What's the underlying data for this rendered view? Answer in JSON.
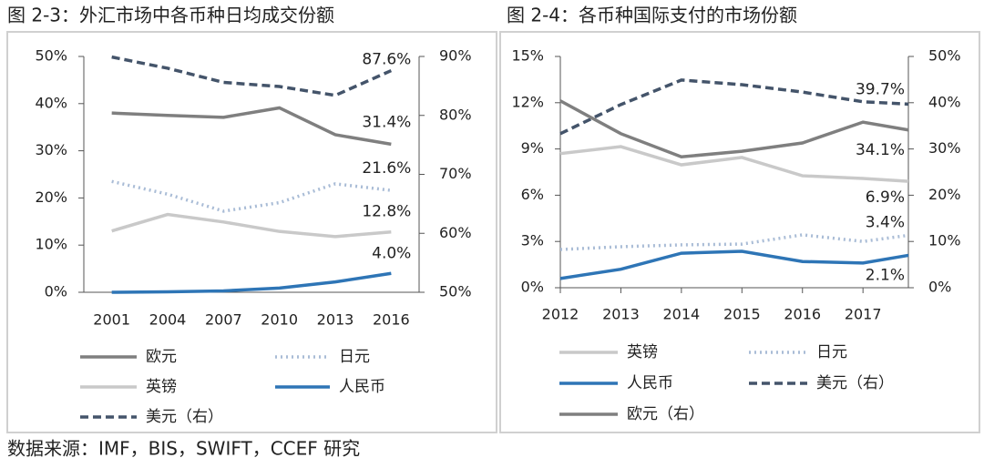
{
  "chart_data": [
    {
      "type": "line",
      "title": "图 2-3：外汇市场中各币种日均成交份额",
      "categories": [
        "2001",
        "2004",
        "2007",
        "2010",
        "2013",
        "2016"
      ],
      "ylim": [
        0,
        50
      ],
      "yticks": [
        {
          "value": 0,
          "label": "0%"
        },
        {
          "value": 10,
          "label": "10%"
        },
        {
          "value": 20,
          "label": "20%"
        },
        {
          "value": 30,
          "label": "30%"
        },
        {
          "value": 40,
          "label": "40%"
        },
        {
          "value": 50,
          "label": "50%"
        }
      ],
      "y2lim": [
        50,
        90
      ],
      "y2ticks": [
        {
          "value": 50,
          "label": "50%"
        },
        {
          "value": 60,
          "label": "60%"
        },
        {
          "value": 70,
          "label": "70%"
        },
        {
          "value": 80,
          "label": "80%"
        },
        {
          "value": 90,
          "label": "90%"
        }
      ],
      "series": [
        {
          "name": "欧元",
          "color": "#7f7f7f",
          "style": "solid",
          "values": [
            38.0,
            37.5,
            37.1,
            39.1,
            33.4,
            31.4
          ],
          "value_labels": [
            null,
            null,
            null,
            null,
            null,
            "31.4%"
          ]
        },
        {
          "name": "日元",
          "color": "#a9bcd6",
          "style": "dotted",
          "values": [
            23.5,
            20.8,
            17.2,
            19.0,
            23.0,
            21.6
          ],
          "value_labels": [
            null,
            null,
            null,
            null,
            null,
            "21.6%"
          ]
        },
        {
          "name": "英镑",
          "color": "#c9c9c9",
          "style": "solid",
          "values": [
            13.0,
            16.5,
            14.9,
            12.9,
            11.8,
            12.8
          ],
          "value_labels": [
            null,
            null,
            null,
            null,
            null,
            "12.8%"
          ]
        },
        {
          "name": "人民币",
          "color": "#2e75b6",
          "style": "solid",
          "values": [
            0.0,
            0.1,
            0.3,
            0.9,
            2.2,
            4.0
          ],
          "value_labels": [
            null,
            null,
            null,
            null,
            null,
            "4.0%"
          ]
        },
        {
          "name": "美元（右）",
          "color": "#44546a",
          "style": "dashed",
          "axis": "y2",
          "values": [
            89.9,
            88.0,
            85.6,
            84.9,
            83.4,
            87.6
          ],
          "value_labels": [
            null,
            null,
            null,
            null,
            null,
            "87.6%"
          ]
        }
      ]
    },
    {
      "type": "line",
      "title": "图 2-4：各币种国际支付的市场份额",
      "xlim": [
        2012,
        2017.75
      ],
      "xticks": [
        2012,
        2013,
        2014,
        2015,
        2016,
        2017
      ],
      "x": [
        2012,
        2013,
        2014,
        2015,
        2016,
        2017,
        2017.75
      ],
      "ylim": [
        0,
        15
      ],
      "yticks": [
        {
          "value": 0,
          "label": "0%"
        },
        {
          "value": 3,
          "label": "3%"
        },
        {
          "value": 6,
          "label": "6%"
        },
        {
          "value": 9,
          "label": "9%"
        },
        {
          "value": 12,
          "label": "12%"
        },
        {
          "value": 15,
          "label": "15%"
        }
      ],
      "y2lim": [
        0,
        50
      ],
      "y2ticks": [
        {
          "value": 0,
          "label": "0%"
        },
        {
          "value": 10,
          "label": "10%"
        },
        {
          "value": 20,
          "label": "20%"
        },
        {
          "value": 30,
          "label": "30%"
        },
        {
          "value": 40,
          "label": "40%"
        },
        {
          "value": 50,
          "label": "50%"
        }
      ],
      "series": [
        {
          "name": "英镑",
          "color": "#c9c9c9",
          "style": "solid",
          "values": [
            8.7,
            9.15,
            7.97,
            8.45,
            7.26,
            7.09,
            6.9
          ],
          "value_labels": [
            null,
            null,
            null,
            null,
            null,
            null,
            "6.9%"
          ]
        },
        {
          "name": "日元",
          "color": "#a9bcd6",
          "style": "dotted",
          "values": [
            2.48,
            2.66,
            2.78,
            2.83,
            3.43,
            3.0,
            3.4
          ],
          "value_labels": [
            null,
            null,
            null,
            null,
            null,
            null,
            "3.4%"
          ]
        },
        {
          "name": "人民币",
          "color": "#2e75b6",
          "style": "solid",
          "values": [
            0.6,
            1.2,
            2.24,
            2.36,
            1.7,
            1.6,
            2.1
          ],
          "value_labels": [
            null,
            null,
            null,
            null,
            null,
            null,
            "2.1%"
          ]
        },
        {
          "name": "美元（右）",
          "color": "#44546a",
          "style": "dashed",
          "axis": "y2",
          "values": [
            33.3,
            39.6,
            44.9,
            43.9,
            42.3,
            40.2,
            39.7
          ],
          "value_labels": [
            null,
            null,
            null,
            null,
            null,
            null,
            "39.7%"
          ]
        },
        {
          "name": "欧元（右）",
          "color": "#7f7f7f",
          "style": "solid",
          "axis": "y2",
          "values": [
            40.4,
            33.3,
            28.3,
            29.5,
            31.3,
            35.8,
            34.1
          ],
          "value_labels": [
            null,
            null,
            null,
            null,
            null,
            null,
            "34.1%"
          ]
        }
      ]
    }
  ],
  "source": "数据来源：IMF，BIS，SWIFT，CCEF 研究"
}
